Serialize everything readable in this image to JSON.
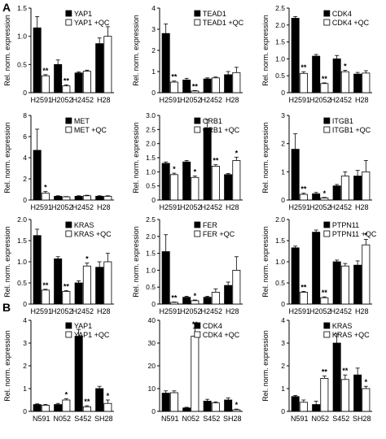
{
  "panel_labels": [
    "A",
    "B"
  ],
  "chart_data": [
    {
      "type": "bar",
      "panel": "A",
      "categories": [
        "H2591",
        "H2052",
        "H2452",
        "H28"
      ],
      "series": [
        {
          "name": "YAP1",
          "values": [
            1.15,
            0.5,
            0.35,
            0.87
          ],
          "errors": [
            0.2,
            0.08,
            0.02,
            0.1
          ],
          "stars": [
            "",
            "",
            "",
            ""
          ]
        },
        {
          "name": "YAP1 +QC",
          "values": [
            0.3,
            0.12,
            0.38,
            1.0
          ],
          "errors": [
            0.02,
            0.02,
            0.02,
            0.17
          ],
          "stars": [
            "**",
            "**",
            "",
            ""
          ]
        }
      ],
      "ylabel": "Rel. norm. expression",
      "ylim": [
        0,
        1.5
      ],
      "yticks": [
        "0",
        "0.5",
        "1.0",
        "1.5"
      ]
    },
    {
      "type": "bar",
      "panel": "A",
      "categories": [
        "H2591",
        "H2052",
        "H2452",
        "H28"
      ],
      "series": [
        {
          "name": "TEAD1",
          "values": [
            2.8,
            0.6,
            0.65,
            0.85
          ],
          "errors": [
            0.45,
            0.08,
            0.05,
            0.15
          ],
          "stars": [
            "",
            "",
            "",
            ""
          ]
        },
        {
          "name": "TEAD1 +QC",
          "values": [
            0.5,
            0.08,
            0.7,
            0.95
          ],
          "errors": [
            0.05,
            0.02,
            0.04,
            0.25
          ],
          "stars": [
            "**",
            "**",
            "",
            ""
          ]
        }
      ],
      "ylabel": "Rel. norm. expression",
      "ylim": [
        0,
        4
      ],
      "yticks": [
        "0",
        "1",
        "2",
        "3",
        "4"
      ]
    },
    {
      "type": "bar",
      "panel": "A",
      "categories": [
        "H2591",
        "H2052",
        "H2452",
        "H28"
      ],
      "series": [
        {
          "name": "CDK4",
          "values": [
            2.2,
            1.08,
            1.0,
            0.55
          ],
          "errors": [
            0.05,
            0.05,
            0.1,
            0.05
          ],
          "stars": [
            "",
            "",
            "",
            ""
          ]
        },
        {
          "name": "CDK4 +QC",
          "values": [
            0.57,
            0.27,
            0.62,
            0.58
          ],
          "errors": [
            0.05,
            0.02,
            0.04,
            0.07
          ],
          "stars": [
            "**",
            "**",
            "*",
            ""
          ]
        }
      ],
      "ylabel": "Rel. norm. expression",
      "ylim": [
        0,
        2.5
      ],
      "yticks": [
        "0",
        "0.5",
        "1.0",
        "1.5",
        "2.0",
        "2.5"
      ]
    },
    {
      "type": "bar",
      "panel": "A",
      "categories": [
        "H2591",
        "H2052",
        "H2452",
        "H28"
      ],
      "series": [
        {
          "name": "MET",
          "values": [
            4.7,
            0.35,
            0.35,
            0.35
          ],
          "errors": [
            2.0,
            0.05,
            0.05,
            0.05
          ],
          "stars": [
            "",
            "",
            "",
            ""
          ]
        },
        {
          "name": "MET +QC",
          "values": [
            0.65,
            0.3,
            0.4,
            0.35
          ],
          "errors": [
            0.15,
            0.03,
            0.05,
            0.05
          ],
          "stars": [
            "*",
            "",
            "",
            ""
          ]
        }
      ],
      "ylabel": "Rel. norm. expression",
      "ylim": [
        0,
        8
      ],
      "yticks": [
        "0",
        "2",
        "4",
        "6",
        "8"
      ]
    },
    {
      "type": "bar",
      "panel": "A",
      "categories": [
        "H2591",
        "H2052",
        "H2452",
        "H28"
      ],
      "series": [
        {
          "name": "CRB1",
          "values": [
            1.3,
            1.35,
            2.55,
            0.9
          ],
          "errors": [
            0.05,
            0.05,
            0.3,
            0.04
          ],
          "stars": [
            "",
            "",
            "",
            ""
          ]
        },
        {
          "name": "CRB1 +QC",
          "values": [
            0.9,
            0.8,
            1.2,
            1.4
          ],
          "errors": [
            0.05,
            0.05,
            0.05,
            0.12
          ],
          "stars": [
            "*",
            "*",
            "**",
            "*"
          ]
        }
      ],
      "ylabel": "Rel. norm. expression",
      "ylim": [
        0,
        3.0
      ],
      "yticks": [
        "0",
        "0.5",
        "1.0",
        "1.5",
        "2.0",
        "2.5",
        "3.0"
      ]
    },
    {
      "type": "bar",
      "panel": "A",
      "categories": [
        "H2591",
        "H2052",
        "H2452",
        "H28"
      ],
      "series": [
        {
          "name": "ITGB1",
          "values": [
            1.8,
            0.22,
            0.5,
            0.85
          ],
          "errors": [
            0.55,
            0.05,
            0.05,
            0.2
          ],
          "stars": [
            "",
            "",
            "",
            ""
          ]
        },
        {
          "name": "ITGB1 +QC",
          "values": [
            0.2,
            0.07,
            0.85,
            1.0
          ],
          "errors": [
            0.04,
            0.02,
            0.15,
            0.4
          ],
          "stars": [
            "**",
            "*",
            "",
            ""
          ]
        }
      ],
      "ylabel": "Rel. norm. expression",
      "ylim": [
        0,
        3
      ],
      "yticks": [
        "0",
        "1",
        "2",
        "3"
      ]
    },
    {
      "type": "bar",
      "panel": "A",
      "categories": [
        "H2591",
        "H2052",
        "H2452",
        "H28"
      ],
      "series": [
        {
          "name": "KRAS",
          "values": [
            1.62,
            1.07,
            0.5,
            0.87
          ],
          "errors": [
            0.15,
            0.05,
            0.05,
            0.13
          ],
          "stars": [
            "",
            "",
            "",
            ""
          ]
        },
        {
          "name": "KRAS +QC",
          "values": [
            0.33,
            0.3,
            0.9,
            1.0
          ],
          "errors": [
            0.02,
            0.02,
            0.07,
            0.2
          ],
          "stars": [
            "**",
            "**",
            "*",
            ""
          ]
        }
      ],
      "ylabel": "Rel. norm. expression",
      "ylim": [
        0,
        2.0
      ],
      "yticks": [
        "0",
        "0.5",
        "1.0",
        "1.5",
        "2.0"
      ]
    },
    {
      "type": "bar",
      "panel": "A",
      "categories": [
        "H2591",
        "H2052",
        "H2452",
        "H28"
      ],
      "series": [
        {
          "name": "FER",
          "values": [
            1.55,
            0.2,
            0.2,
            0.55
          ],
          "errors": [
            0.5,
            0.03,
            0.03,
            0.1
          ],
          "stars": [
            "",
            "",
            "",
            ""
          ]
        },
        {
          "name": "FER +QC",
          "values": [
            0.05,
            0.1,
            0.35,
            1.0
          ],
          "errors": [
            0.01,
            0.02,
            0.1,
            0.4
          ],
          "stars": [
            "**",
            "*",
            "",
            ""
          ]
        }
      ],
      "ylabel": "Rel. norm. expression",
      "ylim": [
        0,
        2.5
      ],
      "yticks": [
        "0",
        "0.5",
        "1.0",
        "1.5",
        "2.0",
        "2.5"
      ]
    },
    {
      "type": "bar",
      "panel": "A",
      "categories": [
        "H2591",
        "H2052",
        "H2452",
        "H28"
      ],
      "series": [
        {
          "name": "PTPN11",
          "values": [
            1.33,
            1.7,
            1.0,
            0.92
          ],
          "errors": [
            0.04,
            0.05,
            0.04,
            0.1
          ],
          "stars": [
            "",
            "",
            "",
            ""
          ]
        },
        {
          "name": "PTPN11 +QC",
          "values": [
            0.28,
            0.15,
            0.9,
            1.4
          ],
          "errors": [
            0.02,
            0.02,
            0.06,
            0.13
          ],
          "stars": [
            "**",
            "**",
            "",
            "*"
          ]
        }
      ],
      "ylabel": "Rel. norm. expression",
      "ylim": [
        0,
        2.0
      ],
      "yticks": [
        "0",
        "0.5",
        "1.0",
        "1.5",
        "2.0"
      ]
    },
    {
      "type": "bar",
      "panel": "B",
      "categories": [
        "N591",
        "N052",
        "S452",
        "SH28"
      ],
      "series": [
        {
          "name": "YAP1",
          "values": [
            0.3,
            0.3,
            3.3,
            1.0
          ],
          "errors": [
            0.03,
            0.05,
            0.3,
            0.1
          ],
          "stars": [
            "",
            "",
            "",
            ""
          ]
        },
        {
          "name": "YAP1 +QC",
          "values": [
            0.27,
            0.5,
            0.2,
            0.35
          ],
          "errors": [
            0.03,
            0.05,
            0.05,
            0.15
          ],
          "stars": [
            "",
            "*",
            "**",
            "*"
          ]
        }
      ],
      "ylabel": "Rel. norm. expression",
      "ylim": [
        0,
        4
      ],
      "yticks": [
        "0",
        "1",
        "2",
        "3",
        "4"
      ]
    },
    {
      "type": "bar",
      "panel": "B",
      "categories": [
        "N591",
        "N052",
        "S452",
        "SH28"
      ],
      "series": [
        {
          "name": "CDK4",
          "values": [
            8.0,
            1.5,
            4.5,
            5.0
          ],
          "errors": [
            1.0,
            0.3,
            0.8,
            0.9
          ],
          "stars": [
            "",
            "",
            "",
            ""
          ]
        },
        {
          "name": "CDK4 +QC",
          "values": [
            8.2,
            33.0,
            3.7,
            0.7
          ],
          "errors": [
            0.8,
            3.5,
            0.5,
            0.3
          ],
          "stars": [
            "",
            "**",
            "",
            "*"
          ]
        }
      ],
      "ylabel": "",
      "ylim": [
        0,
        40
      ],
      "yticks": [
        "0",
        "10",
        "20",
        "30",
        "40"
      ]
    },
    {
      "type": "bar",
      "panel": "B",
      "categories": [
        "N591",
        "N052",
        "S452",
        "SH28"
      ],
      "series": [
        {
          "name": "KRAS",
          "values": [
            0.65,
            0.3,
            3.0,
            1.6
          ],
          "errors": [
            0.05,
            0.15,
            0.4,
            0.3
          ],
          "stars": [
            "",
            "",
            "",
            ""
          ]
        },
        {
          "name": "KRAS +QC",
          "values": [
            0.4,
            1.45,
            1.4,
            1.0
          ],
          "errors": [
            0.1,
            0.1,
            0.2,
            0.1
          ],
          "stars": [
            "",
            "**",
            "**",
            "*"
          ]
        }
      ],
      "ylabel": "Rel. norm. expression",
      "ylim": [
        0,
        4
      ],
      "yticks": [
        "0",
        "1",
        "2",
        "3",
        "4"
      ]
    }
  ]
}
